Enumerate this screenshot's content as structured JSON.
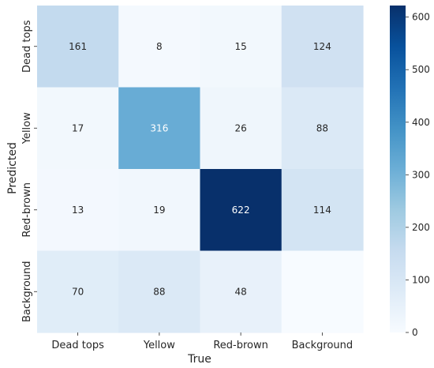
{
  "chart_data": {
    "type": "heatmap",
    "xlabel": "True",
    "ylabel": "Predicted",
    "x_categories": [
      "Dead tops",
      "Yellow",
      "Red-brown",
      "Background"
    ],
    "y_categories": [
      "Dead tops",
      "Yellow",
      "Red-brown",
      "Background"
    ],
    "values": [
      [
        161,
        8,
        15,
        124
      ],
      [
        17,
        316,
        26,
        88
      ],
      [
        13,
        19,
        622,
        114
      ],
      [
        70,
        88,
        48,
        null
      ]
    ],
    "colormap": "Blues",
    "color_low": "#f7fbff",
    "color_high": "#08306b",
    "colorbar": {
      "min": 0,
      "max": 622,
      "ticks": [
        0,
        100,
        200,
        300,
        400,
        500,
        600
      ]
    }
  }
}
